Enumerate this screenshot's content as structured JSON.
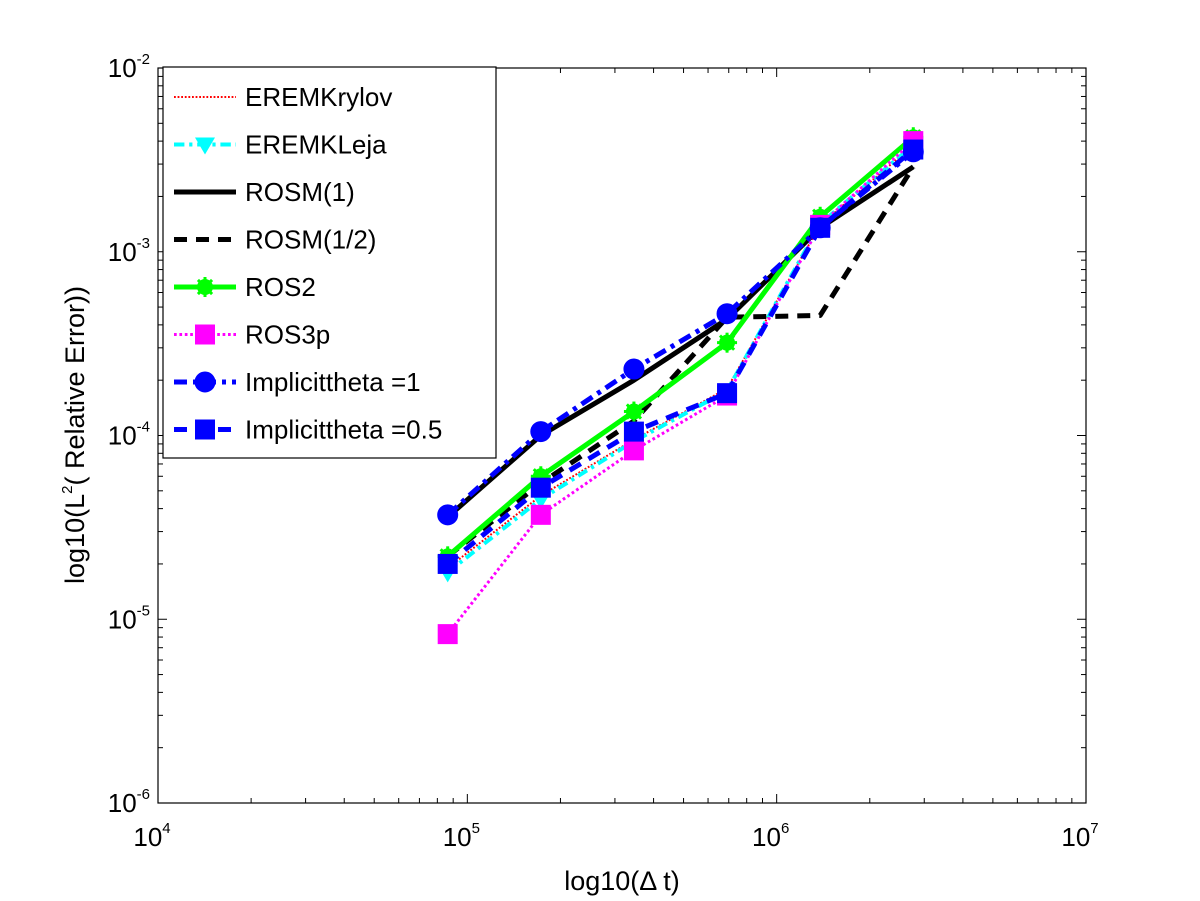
{
  "chart_data": {
    "type": "line",
    "xscale": "log",
    "yscale": "log",
    "xlim": [
      10000,
      10000000
    ],
    "ylim": [
      1e-06,
      0.01
    ],
    "xlabel": "log10(Δ t)",
    "ylabel": {
      "prefix": "log10(L",
      "sup": "2",
      "suffix": "( Relative Error))"
    },
    "x_ticks": [
      {
        "value": 10000,
        "base": "10",
        "exp": "4"
      },
      {
        "value": 100000,
        "base": "10",
        "exp": "5"
      },
      {
        "value": 1000000,
        "base": "10",
        "exp": "6"
      },
      {
        "value": 10000000,
        "base": "10",
        "exp": "7"
      }
    ],
    "y_ticks": [
      {
        "value": 1e-06,
        "base": "10",
        "exp": "-6"
      },
      {
        "value": 1e-05,
        "base": "10",
        "exp": "-5"
      },
      {
        "value": 0.0001,
        "base": "10",
        "exp": "-4"
      },
      {
        "value": 0.001,
        "base": "10",
        "exp": "-3"
      },
      {
        "value": 0.01,
        "base": "10",
        "exp": "-2"
      }
    ],
    "grid": false,
    "legend_position": "top-left",
    "x": [
      86400,
      172800,
      345600,
      691200,
      1382400,
      2764800
    ],
    "series": [
      {
        "name": "EREMKrylov",
        "color": "#ff0000",
        "dash": "dotted",
        "width": 2,
        "marker": "none",
        "values": [
          1.9e-05,
          4.7e-05,
          9.5e-05,
          0.00018,
          0.0014,
          0.0038
        ]
      },
      {
        "name": "EREMKLeja",
        "color": "#00ffff",
        "dash": "dashdot",
        "width": 4,
        "marker": "triangle-down",
        "values": [
          1.8e-05,
          4.5e-05,
          9.3e-05,
          0.000175,
          0.00142,
          0.0038
        ]
      },
      {
        "name": "ROSM(1)",
        "color": "#000000",
        "dash": "solid",
        "width": 5,
        "marker": "none",
        "values": [
          3.6e-05,
          0.0001,
          0.0002,
          0.00043,
          0.00135,
          0.0029
        ]
      },
      {
        "name": "ROSM(1/2)",
        "color": "#000000",
        "dash": "dashed",
        "width": 5,
        "marker": "none",
        "values": [
          2.2e-05,
          5.5e-05,
          0.00012,
          0.00044,
          0.00045,
          0.0029
        ]
      },
      {
        "name": "ROS2",
        "color": "#00ff00",
        "dash": "solid",
        "width": 5,
        "marker": "star",
        "values": [
          2.2e-05,
          6e-05,
          0.000135,
          0.00032,
          0.00155,
          0.0042
        ]
      },
      {
        "name": "ROS3p",
        "color": "#ff00ff",
        "dash": "dotted",
        "width": 3,
        "marker": "square",
        "values": [
          8.3e-06,
          3.7e-05,
          8.3e-05,
          0.000165,
          0.0014,
          0.004
        ]
      },
      {
        "name": "Implicittheta =1",
        "color": "#0000ff",
        "dash": "dashdot",
        "width": 5,
        "marker": "circle",
        "values": [
          3.7e-05,
          0.000105,
          0.00023,
          0.00046,
          0.00135,
          0.0035
        ]
      },
      {
        "name": "Implicittheta =0.5",
        "color": "#0000ff",
        "dash": "dashed",
        "width": 5,
        "marker": "square",
        "values": [
          2e-05,
          5.2e-05,
          0.000105,
          0.00017,
          0.00135,
          0.0036
        ]
      }
    ]
  }
}
